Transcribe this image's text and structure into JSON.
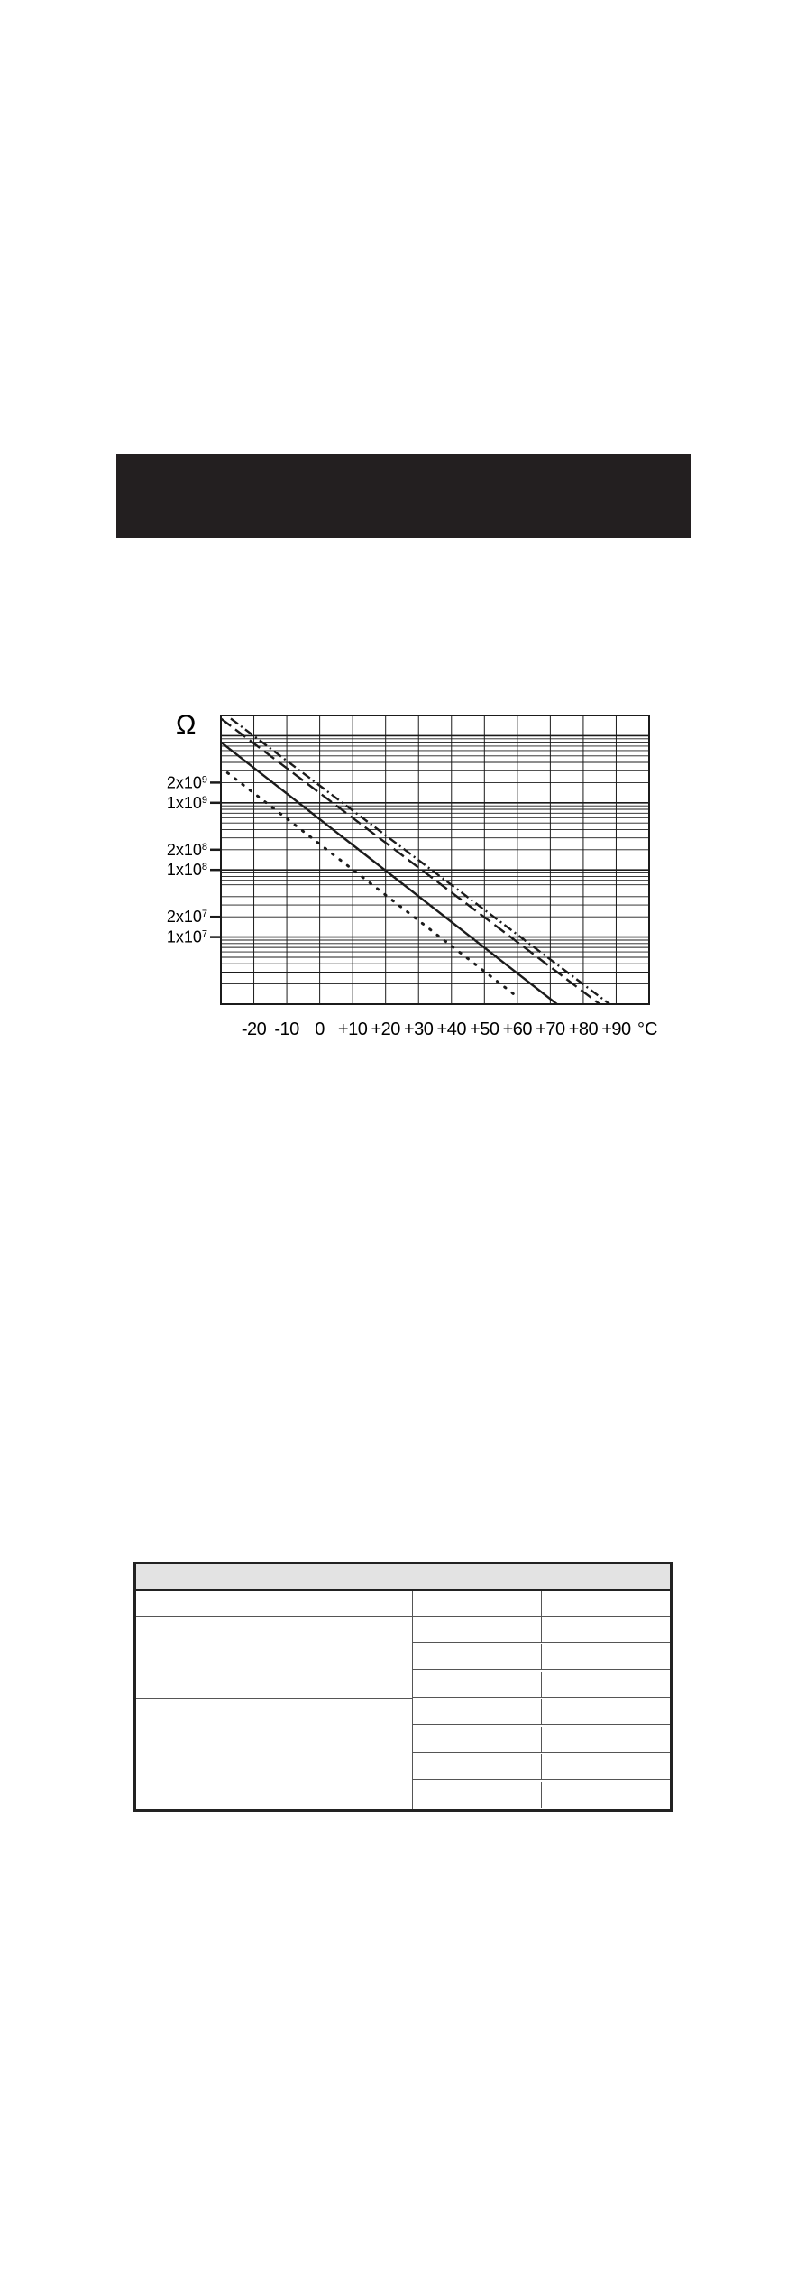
{
  "colors": {
    "header_bar": "#231f20",
    "ink": "#1b1b1b",
    "table_head": "#e3e3e3"
  },
  "chart_data": {
    "type": "line",
    "xlabel": "°C",
    "ylabel": "Ω",
    "x_ticks": [
      -20,
      -10,
      0,
      10,
      20,
      30,
      40,
      50,
      60,
      70,
      80,
      90
    ],
    "x_tick_labels": [
      "-20",
      "-10",
      "0",
      "+10",
      "+20",
      "+30",
      "+40",
      "+50",
      "+60",
      "+70",
      "+80",
      "+90"
    ],
    "xlim": [
      -30,
      100
    ],
    "y_scale": "log",
    "ylim": [
      1000000,
      20000000000
    ],
    "y_ticks": [
      {
        "value": 2000000000,
        "mantissa": "2x10",
        "exp": "9"
      },
      {
        "value": 1000000000,
        "mantissa": "1x10",
        "exp": "9"
      },
      {
        "value": 200000000,
        "mantissa": "2x10",
        "exp": "8"
      },
      {
        "value": 100000000,
        "mantissa": "1x10",
        "exp": "8"
      },
      {
        "value": 20000000,
        "mantissa": "2x10",
        "exp": "7"
      },
      {
        "value": 10000000,
        "mantissa": "1x10",
        "exp": "7"
      }
    ],
    "grid": true,
    "series": [
      {
        "style": "dashed",
        "x": [
          -30,
          85
        ],
        "y": [
          18000000000,
          1000000
        ]
      },
      {
        "style": "dash-dot",
        "x": [
          -27,
          88
        ],
        "y": [
          18000000000,
          1000000
        ]
      },
      {
        "style": "solid",
        "x": [
          -30,
          72
        ],
        "y": [
          8000000000,
          1000000
        ]
      },
      {
        "style": "dotted",
        "x": [
          -28,
          59
        ],
        "y": [
          2800000000,
          1400000
        ]
      }
    ]
  },
  "table": {
    "rows": 8,
    "columns": 3
  }
}
